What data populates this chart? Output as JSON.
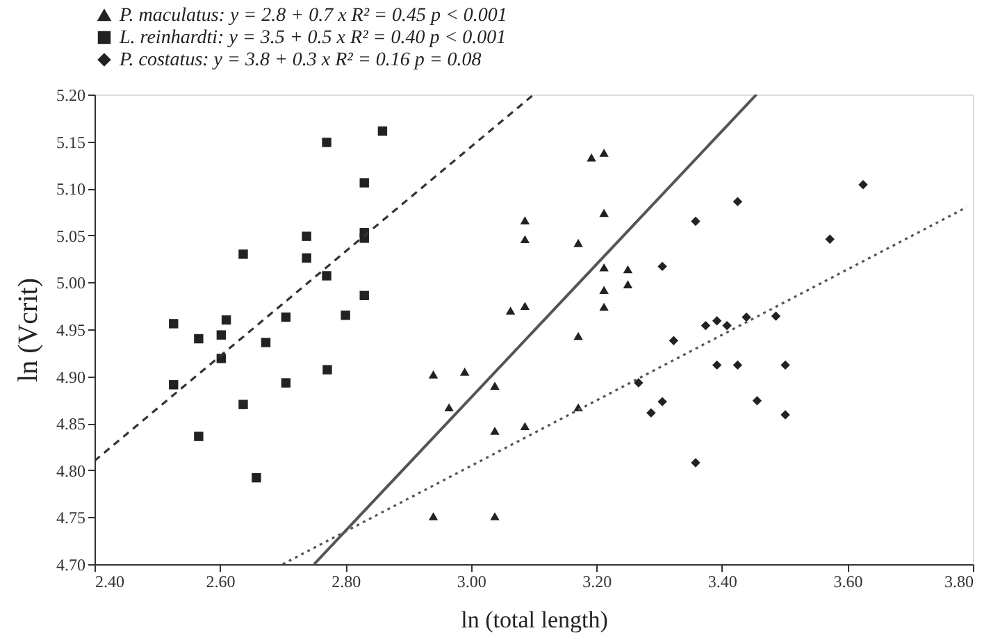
{
  "chart_data": {
    "type": "scatter",
    "xlabel": "ln (total length)",
    "ylabel": "ln (Vcrit)",
    "legend": "top",
    "grid": false,
    "xlim": [
      2.4,
      3.8
    ],
    "ylim": [
      4.7,
      5.2
    ],
    "xticks": [
      {
        "value": 2.4,
        "label": "2.40"
      },
      {
        "value": 2.6,
        "label": "2.60"
      },
      {
        "value": 2.8,
        "label": "2.80"
      },
      {
        "value": 3.0,
        "label": "3.00"
      },
      {
        "value": 3.2,
        "label": "3.20"
      },
      {
        "value": 3.4,
        "label": "3.40"
      },
      {
        "value": 3.6,
        "label": "3.60"
      },
      {
        "value": 3.8,
        "label": "3.80"
      }
    ],
    "yticks": [
      {
        "value": 4.7,
        "label": "4.70"
      },
      4.75,
      {
        "value": 4.8,
        "label": "4.80"
      },
      4.85,
      {
        "value": 4.9,
        "label": "4.90"
      },
      4.95,
      {
        "value": 5.0,
        "label": "5.00"
      },
      5.05,
      {
        "value": 5.1,
        "label": "5.10"
      },
      5.15,
      {
        "value": 5.2,
        "label": "5.20"
      }
    ],
    "series": [
      {
        "name": "P. maculatus: y = 2.8 + 0.7 x    R² = 0.45   p < 0.001",
        "type": "scatter",
        "marker": "triangle",
        "color": "#222222",
        "x": [
          2.94,
          2.965,
          2.99,
          3.038,
          3.038,
          3.038,
          2.94,
          3.063,
          3.086,
          3.086,
          3.086,
          3.086,
          3.171,
          3.171,
          3.171,
          3.192,
          3.212,
          3.212,
          3.212,
          3.212,
          3.212,
          3.25,
          3.25
        ],
        "values": [
          4.902,
          4.867,
          4.905,
          4.89,
          4.842,
          4.751,
          4.751,
          4.97,
          4.975,
          5.046,
          5.066,
          4.847,
          5.042,
          4.943,
          4.867,
          5.133,
          5.138,
          5.074,
          5.016,
          4.992,
          4.974,
          5.014,
          4.998
        ]
      },
      {
        "name": "L. reinhardti: y = 3.5 + 0.5 x    R² = 0.40   p < 0.001",
        "type": "scatter",
        "marker": "square",
        "color": "#222222",
        "x": [
          2.526,
          2.566,
          2.602,
          2.61,
          2.602,
          2.526,
          2.566,
          2.637,
          2.637,
          2.658,
          2.673,
          2.705,
          2.705,
          2.738,
          2.738,
          2.77,
          2.77,
          2.771,
          2.8,
          2.83,
          2.83,
          2.83,
          2.83,
          2.859
        ],
        "values": [
          4.956,
          4.94,
          4.944,
          4.96,
          4.919,
          4.891,
          4.836,
          5.03,
          4.87,
          4.792,
          4.936,
          4.963,
          4.893,
          5.049,
          5.026,
          5.149,
          5.007,
          4.907,
          4.965,
          5.106,
          5.053,
          5.047,
          4.986,
          5.161
        ]
      },
      {
        "name": "P. costatus: y = 3.8 + 0.3 x    R² = 0.16   p = 0.08",
        "type": "scatter",
        "marker": "diamond",
        "color": "#222222",
        "x": [
          3.267,
          3.287,
          3.305,
          3.305,
          3.323,
          3.358,
          3.358,
          3.374,
          3.392,
          3.392,
          3.408,
          3.425,
          3.425,
          3.439,
          3.456,
          3.486,
          3.501,
          3.501,
          3.572,
          3.625
        ],
        "values": [
          4.893,
          4.861,
          4.873,
          5.017,
          4.938,
          5.065,
          4.808,
          4.954,
          4.959,
          4.912,
          4.954,
          5.086,
          4.912,
          4.963,
          4.874,
          4.964,
          4.912,
          4.859,
          5.046,
          5.104
        ]
      },
      {
        "type": "line",
        "line_style": "solid",
        "color": "#555555",
        "x": [
          2.75,
          3.455
        ],
        "values": [
          4.7,
          5.2
        ]
      },
      {
        "type": "line",
        "line_style": "dashed",
        "color": "#333333",
        "x": [
          2.4,
          3.1
        ],
        "values": [
          4.81,
          5.2
        ]
      },
      {
        "type": "line",
        "line_style": "dotted",
        "color": "#555555",
        "x": [
          2.7,
          3.79
        ],
        "values": [
          4.7,
          5.08
        ]
      }
    ]
  }
}
